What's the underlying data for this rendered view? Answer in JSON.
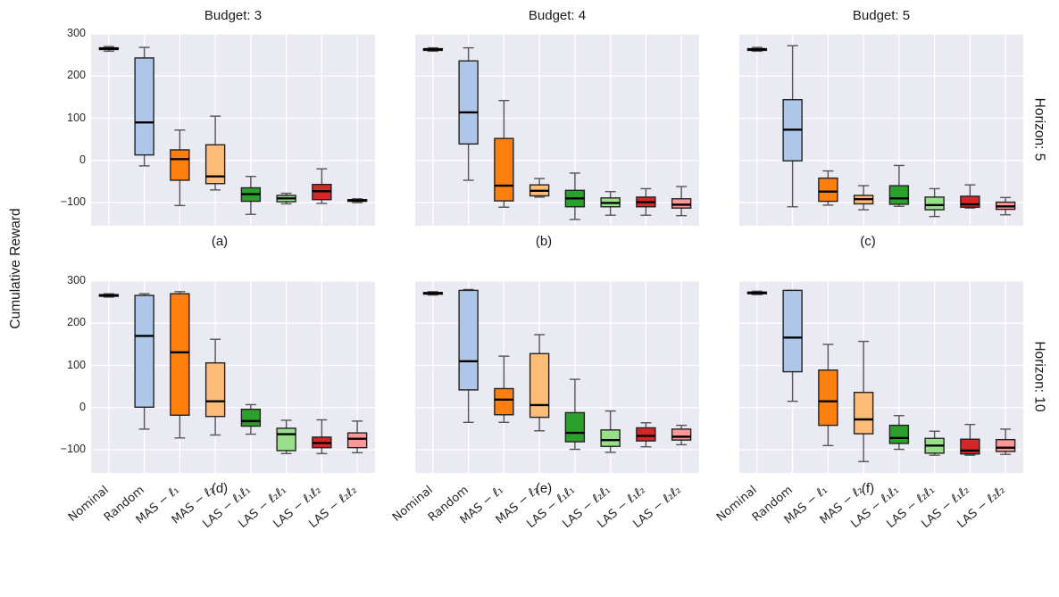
{
  "figure": {
    "ylabel": "Cumulative Reward",
    "col_titles": [
      "Budget: 3",
      "Budget: 4",
      "Budget: 5"
    ],
    "row_labels": [
      "Horizon: 5",
      "Horizon: 10"
    ],
    "captions": [
      "(a)",
      "(b)",
      "(c)",
      "(d)",
      "(e)",
      "(f)"
    ],
    "panel_background": "#eaeaf2",
    "grid_color": "#ffffff",
    "box_edge_color": "#222222",
    "whisker_color": "#555555",
    "median_color": "#000000"
  },
  "chart_data": {
    "type": "boxplot",
    "grid": [
      2,
      3
    ],
    "categories": [
      "Nominal",
      "Random",
      "MAS − ℓ₁",
      "MAS − ℓ₂",
      "LAS − ℓ₁ℓ₁",
      "LAS − ℓ₂ℓ₁",
      "LAS − ℓ₁ℓ₂",
      "LAS − ℓ₂ℓ₂"
    ],
    "box_colors": [
      "#ffffff",
      "#aec7e8",
      "#ff7f0e",
      "#ffbb78",
      "#2ca02c",
      "#98df8a",
      "#d62728",
      "#ff9896"
    ],
    "ylabel": "Cumulative Reward",
    "ylim": [
      -155,
      300
    ],
    "yticks": [
      300,
      200,
      100,
      0,
      -100
    ],
    "box_keys": "lo=lower whisker, q1, med=median, q3, hi=upper whisker",
    "panels": [
      {
        "caption": "(a)",
        "title": "Budget: 3",
        "row_label": "Horizon: 5",
        "boxes": [
          {
            "lo": 259,
            "q1": 263,
            "med": 265,
            "q3": 267,
            "hi": 270
          },
          {
            "lo": -13,
            "q1": 13,
            "med": 90,
            "q3": 243,
            "hi": 268
          },
          {
            "lo": -107,
            "q1": -47,
            "med": 3,
            "q3": 25,
            "hi": 72
          },
          {
            "lo": -70,
            "q1": -55,
            "med": -38,
            "q3": 37,
            "hi": 105
          },
          {
            "lo": -128,
            "q1": -97,
            "med": -80,
            "q3": -65,
            "hi": -38
          },
          {
            "lo": -103,
            "q1": -98,
            "med": -90,
            "q3": -83,
            "hi": -78
          },
          {
            "lo": -102,
            "q1": -93,
            "med": -73,
            "q3": -57,
            "hi": -20
          },
          {
            "lo": -100,
            "q1": -97,
            "med": -95,
            "q3": -93,
            "hi": -91
          }
        ]
      },
      {
        "caption": "(b)",
        "title": "Budget: 4",
        "row_label": "Horizon: 5",
        "boxes": [
          {
            "lo": 259,
            "q1": 261,
            "med": 263,
            "q3": 265,
            "hi": 267
          },
          {
            "lo": -47,
            "q1": 39,
            "med": 114,
            "q3": 236,
            "hi": 267
          },
          {
            "lo": -111,
            "q1": -96,
            "med": -60,
            "q3": 52,
            "hi": 142
          },
          {
            "lo": -87,
            "q1": -84,
            "med": -72,
            "q3": -58,
            "hi": -43
          },
          {
            "lo": -140,
            "q1": -110,
            "med": -90,
            "q3": -71,
            "hi": -30
          },
          {
            "lo": -130,
            "q1": -110,
            "med": -101,
            "q3": -89,
            "hi": -74
          },
          {
            "lo": -130,
            "q1": -110,
            "med": -99,
            "q3": -87,
            "hi": -67
          },
          {
            "lo": -131,
            "q1": -113,
            "med": -105,
            "q3": -91,
            "hi": -62
          }
        ]
      },
      {
        "caption": "(c)",
        "title": "Budget: 5",
        "row_label": "Horizon: 5",
        "boxes": [
          {
            "lo": 259,
            "q1": 261,
            "med": 263,
            "q3": 265,
            "hi": 268
          },
          {
            "lo": -110,
            "q1": -1,
            "med": 73,
            "q3": 144,
            "hi": 272
          },
          {
            "lo": -106,
            "q1": -97,
            "med": -74,
            "q3": -42,
            "hi": -25
          },
          {
            "lo": -117,
            "q1": -103,
            "med": -92,
            "q3": -83,
            "hi": -60
          },
          {
            "lo": -109,
            "q1": -104,
            "med": -90,
            "q3": -60,
            "hi": -12
          },
          {
            "lo": -133,
            "q1": -117,
            "med": -106,
            "q3": -87,
            "hi": -67
          },
          {
            "lo": -113,
            "q1": -111,
            "med": -104,
            "q3": -85,
            "hi": -58
          },
          {
            "lo": -129,
            "q1": -116,
            "med": -109,
            "q3": -99,
            "hi": -88
          }
        ]
      },
      {
        "caption": "(d)",
        "title": "Budget: 3",
        "row_label": "Horizon: 10",
        "boxes": [
          {
            "lo": 262,
            "q1": 264,
            "med": 266,
            "q3": 268,
            "hi": 270
          },
          {
            "lo": -51,
            "q1": 1,
            "med": 170,
            "q3": 266,
            "hi": 270
          },
          {
            "lo": -72,
            "q1": -18,
            "med": 131,
            "q3": 270,
            "hi": 275
          },
          {
            "lo": -65,
            "q1": -21,
            "med": 15,
            "q3": 106,
            "hi": 162
          },
          {
            "lo": -63,
            "q1": -44,
            "med": -32,
            "q3": -4,
            "hi": 7
          },
          {
            "lo": -109,
            "q1": -102,
            "med": -63,
            "q3": -49,
            "hi": -30
          },
          {
            "lo": -109,
            "q1": -95,
            "med": -84,
            "q3": -70,
            "hi": -29
          },
          {
            "lo": -107,
            "q1": -95,
            "med": -74,
            "q3": -60,
            "hi": -32
          }
        ]
      },
      {
        "caption": "(e)",
        "title": "Budget: 4",
        "row_label": "Horizon: 10",
        "boxes": [
          {
            "lo": 267,
            "q1": 269,
            "med": 271,
            "q3": 273,
            "hi": 275
          },
          {
            "lo": -35,
            "q1": 42,
            "med": 110,
            "q3": 278,
            "hi": 280
          },
          {
            "lo": -35,
            "q1": -17,
            "med": 19,
            "q3": 45,
            "hi": 122
          },
          {
            "lo": -55,
            "q1": -23,
            "med": 6,
            "q3": 128,
            "hi": 173
          },
          {
            "lo": -99,
            "q1": -81,
            "med": -60,
            "q3": -12,
            "hi": 67
          },
          {
            "lo": -106,
            "q1": -92,
            "med": -77,
            "q3": -53,
            "hi": -8
          },
          {
            "lo": -93,
            "q1": -79,
            "med": -67,
            "q3": -48,
            "hi": -36
          },
          {
            "lo": -88,
            "q1": -77,
            "med": -69,
            "q3": -51,
            "hi": -42
          }
        ]
      },
      {
        "caption": "(f)",
        "title": "Budget: 5",
        "row_label": "Horizon: 10",
        "boxes": [
          {
            "lo": 268,
            "q1": 270,
            "med": 272,
            "q3": 274,
            "hi": 276
          },
          {
            "lo": 15,
            "q1": 85,
            "med": 166,
            "q3": 278,
            "hi": 278
          },
          {
            "lo": -90,
            "q1": -42,
            "med": 15,
            "q3": 89,
            "hi": 150
          },
          {
            "lo": -128,
            "q1": -62,
            "med": -28,
            "q3": 36,
            "hi": 157
          },
          {
            "lo": -99,
            "q1": -85,
            "med": -72,
            "q3": -42,
            "hi": -19
          },
          {
            "lo": -113,
            "q1": -108,
            "med": -90,
            "q3": -73,
            "hi": -56
          },
          {
            "lo": -113,
            "q1": -110,
            "med": -102,
            "q3": -75,
            "hi": -40
          },
          {
            "lo": -111,
            "q1": -104,
            "med": -95,
            "q3": -76,
            "hi": -51
          }
        ]
      }
    ]
  }
}
